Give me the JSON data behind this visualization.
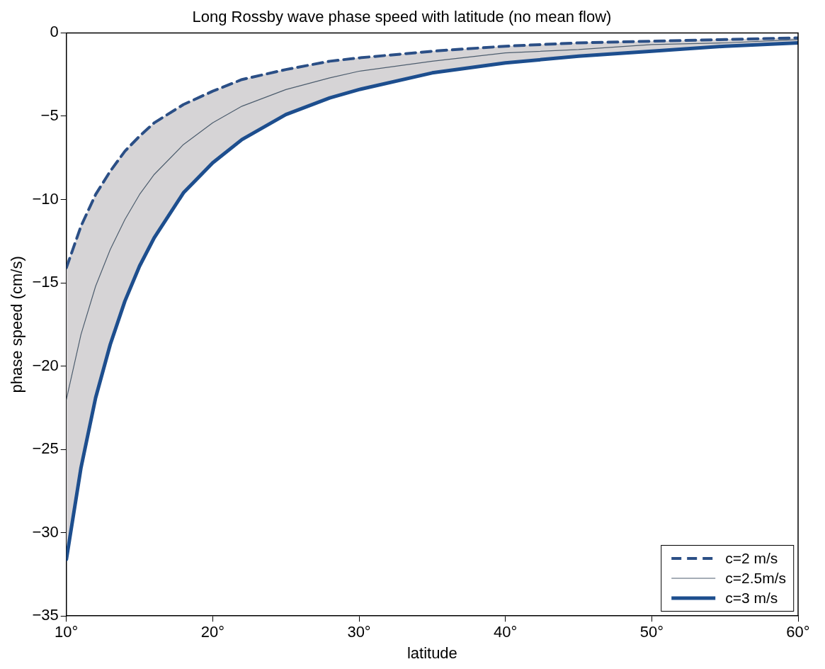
{
  "chart_data": {
    "type": "line",
    "title": "Long Rossby wave phase speed with latitude (no mean flow)",
    "xlabel": "latitude",
    "ylabel": "phase speed (cm/s)",
    "x": [
      10,
      11,
      12,
      13,
      14,
      15,
      16,
      18,
      20,
      22,
      25,
      28,
      30,
      35,
      40,
      45,
      50,
      55,
      60
    ],
    "xlim": [
      10,
      60
    ],
    "xticks": [
      {
        "value": 10,
        "label": "10°"
      },
      {
        "value": 20,
        "label": "20°"
      },
      {
        "value": 30,
        "label": "30°"
      },
      {
        "value": 40,
        "label": "40°"
      },
      {
        "value": 50,
        "label": "50°"
      },
      {
        "value": 60,
        "label": "60°"
      }
    ],
    "ylim": [
      -35,
      0
    ],
    "yticks": [
      -35,
      -30,
      -25,
      -20,
      -15,
      -10,
      -5,
      0
    ],
    "grid": false,
    "legend": "bottom right",
    "marker": "none",
    "series": [
      {
        "name": "c=2 m/s",
        "color": "#2b4f86",
        "line_style": "dashed",
        "values": [
          -14.1,
          -11.6,
          -9.7,
          -8.3,
          -7.1,
          -6.2,
          -5.4,
          -4.3,
          -3.5,
          -2.8,
          -2.2,
          -1.7,
          -1.5,
          -1.1,
          -0.8,
          -0.6,
          -0.5,
          -0.4,
          -0.3
        ]
      },
      {
        "name": "c=2.5m/s",
        "color": "#4d5d6e",
        "line_style": "solid",
        "values": [
          -22.0,
          -18.1,
          -15.2,
          -13.0,
          -11.2,
          -9.7,
          -8.5,
          -6.7,
          -5.4,
          -4.4,
          -3.4,
          -2.7,
          -2.3,
          -1.7,
          -1.2,
          -1.0,
          -0.7,
          -0.6,
          -0.4
        ],
        "lower": [
          -31.6,
          -26.1,
          -21.9,
          -18.7,
          -16.1,
          -14.0,
          -12.3,
          -9.6,
          -7.8,
          -6.4,
          -4.9,
          -3.9,
          -3.4,
          -2.4,
          -1.8,
          -1.4,
          -1.1,
          -0.8,
          -0.6
        ],
        "upper": [
          -14.1,
          -11.6,
          -9.7,
          -8.3,
          -7.1,
          -6.2,
          -5.4,
          -4.3,
          -3.5,
          -2.8,
          -2.2,
          -1.7,
          -1.5,
          -1.1,
          -0.8,
          -0.6,
          -0.5,
          -0.4,
          -0.3
        ]
      },
      {
        "name": "c=3 m/s",
        "color": "#1d4e8e",
        "line_style": "solid",
        "values": [
          -31.6,
          -26.1,
          -21.9,
          -18.7,
          -16.1,
          -14.0,
          -12.3,
          -9.6,
          -7.8,
          -6.4,
          -4.9,
          -3.9,
          -3.4,
          -2.4,
          -1.8,
          -1.4,
          -1.1,
          -0.8,
          -0.6
        ]
      }
    ]
  }
}
